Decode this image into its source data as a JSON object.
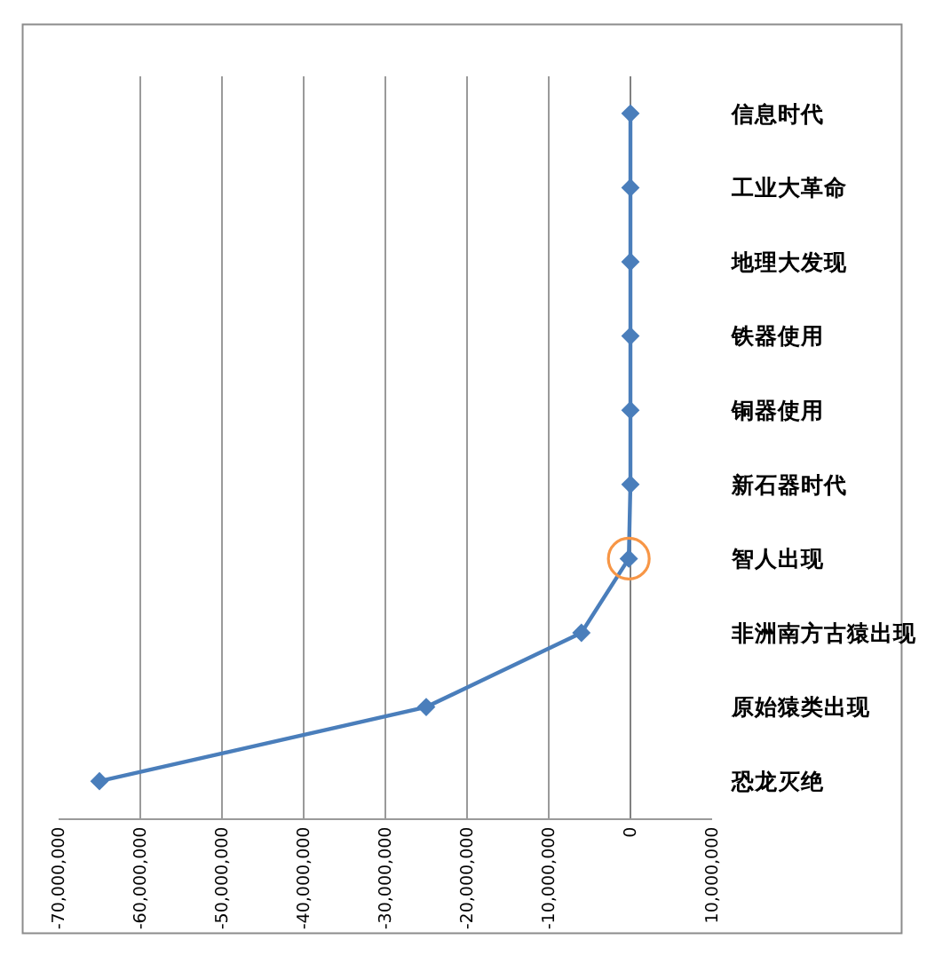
{
  "chart_data": {
    "type": "line",
    "orientation": "horizontal",
    "categories": [
      "信息时代",
      "工业大革命",
      "地理大发现",
      "铁器使用",
      "铜器使用",
      "新石器时代",
      "智人出现",
      "非洲南方古猿出现",
      "原始猿类出现",
      "恐龙灭绝"
    ],
    "series": [
      {
        "color": "#4a7ebb",
        "marker": "diamond",
        "values": [
          0,
          0,
          0,
          0,
          0,
          0,
          -200000,
          -6000000,
          -25000000,
          -65000000
        ]
      },
      {
        "type": "scatter",
        "color": "#f79646",
        "marker": "circle",
        "values": [
          null,
          null,
          null,
          null,
          null,
          null,
          -200000,
          null,
          null,
          null
        ]
      }
    ],
    "xlim": [
      -70000000,
      10000000
    ],
    "xticks": [
      {
        "value": -70000000,
        "label": "-70,000,000"
      },
      {
        "value": -60000000,
        "label": "-60,000,000"
      },
      {
        "value": -50000000,
        "label": "-50,000,000"
      },
      {
        "value": -40000000,
        "label": "-40,000,000"
      },
      {
        "value": -30000000,
        "label": "-30,000,000"
      },
      {
        "value": -20000000,
        "label": "-20,000,000"
      },
      {
        "value": -10000000,
        "label": "-10,000,000"
      },
      0,
      {
        "value": 10000000,
        "label": "10,000,000"
      }
    ],
    "grid": "x",
    "legend": false
  }
}
